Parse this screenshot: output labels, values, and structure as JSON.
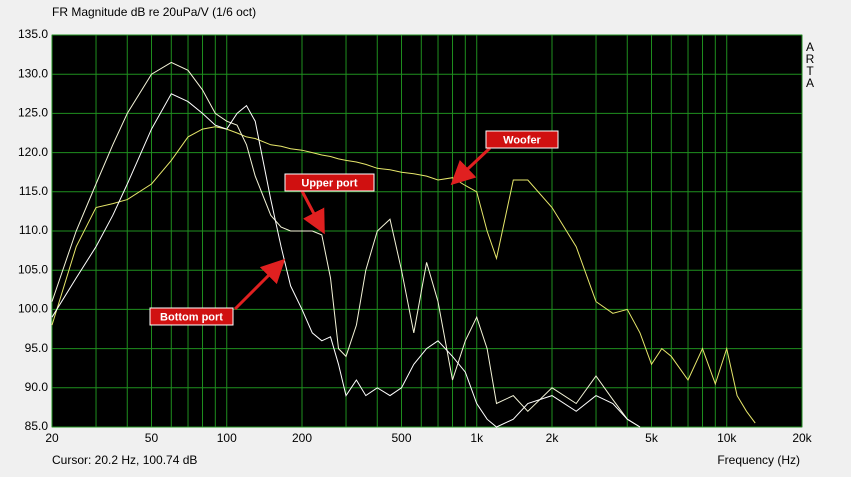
{
  "chart_data": {
    "type": "line",
    "title": "FR Magnitude dB re 20uPa/V (1/6 oct)",
    "side_label": "ARTA",
    "cursor_text": "Cursor: 20.2 Hz, 100.74 dB",
    "x_label": "Frequency (Hz)",
    "x_scale": "log",
    "grid": true,
    "grid_color": "#1f8f1f",
    "xlim": [
      20,
      20000
    ],
    "xticks": [
      20,
      50,
      100,
      200,
      500,
      {
        "value": 1000,
        "label": "1k"
      },
      {
        "value": 2000,
        "label": "2k"
      },
      {
        "value": 5000,
        "label": "5k"
      },
      {
        "value": 10000,
        "label": "10k"
      },
      {
        "value": 20000,
        "label": "20k"
      }
    ],
    "xminor_ticks": [
      30,
      40,
      60,
      70,
      80,
      90,
      300,
      400,
      600,
      700,
      800,
      900,
      3000,
      4000,
      6000,
      7000,
      8000,
      9000
    ],
    "ylim": [
      85,
      135
    ],
    "yticks": [
      {
        "value": 85,
        "label": "85.0"
      },
      {
        "value": 90,
        "label": "90.0"
      },
      {
        "value": 95,
        "label": "95.0"
      },
      {
        "value": 100,
        "label": "100.0"
      },
      {
        "value": 105,
        "label": "105.0"
      },
      {
        "value": 110,
        "label": "110.0"
      },
      {
        "value": 115,
        "label": "115.0"
      },
      {
        "value": 120,
        "label": "120.0"
      },
      {
        "value": 125,
        "label": "125.0"
      },
      {
        "value": 130,
        "label": "130.0"
      },
      {
        "value": 135,
        "label": "135.0"
      }
    ],
    "x": [
      20,
      25,
      30,
      35,
      40,
      50,
      60,
      70,
      80,
      90,
      100,
      110,
      120,
      130,
      150,
      165,
      180,
      200,
      220,
      240,
      260,
      280,
      300,
      330,
      360,
      400,
      450,
      500,
      560,
      630,
      700,
      800,
      900,
      1000,
      1100,
      1200,
      1400,
      1600,
      2000,
      2500,
      3000,
      3500,
      4000,
      4500,
      5000,
      5500,
      6000,
      7000,
      8000,
      9000,
      10000,
      11000,
      12000,
      13000
    ],
    "series": [
      {
        "name": "Woofer",
        "color": "#e6e66a",
        "values": [
          98,
          108,
          113,
          113.5,
          114,
          116,
          119,
          122,
          123,
          123.3,
          123,
          122.5,
          122,
          121.8,
          121,
          120.8,
          120.5,
          120.3,
          120,
          119.7,
          119.5,
          119.2,
          119,
          118.8,
          118.5,
          118,
          117.8,
          117.5,
          117.3,
          117,
          116.5,
          116.8,
          115.8,
          115,
          110,
          106.5,
          116.5,
          116.5,
          113,
          108,
          101,
          99.5,
          100,
          97,
          93,
          95,
          94,
          91,
          95,
          90.5,
          95,
          89,
          87,
          85.5
        ]
      },
      {
        "name": "Upper port",
        "color": "#f4f4d8",
        "values": [
          101,
          110,
          116,
          121,
          125,
          130,
          131.5,
          130.5,
          128,
          125,
          124,
          123.5,
          121,
          117,
          112,
          110.5,
          110,
          110,
          110,
          109.5,
          104,
          95,
          94,
          98,
          105,
          110,
          111.5,
          105,
          97,
          106,
          101,
          91,
          96,
          99,
          95,
          88,
          89,
          87,
          90,
          88,
          91.5,
          88.5,
          86,
          85,
          null,
          null,
          null,
          null,
          null,
          null,
          null,
          null,
          null,
          null
        ]
      },
      {
        "name": "Bottom port",
        "color": "#ffffff",
        "values": [
          99,
          104,
          108,
          112,
          116,
          123,
          127.5,
          126.5,
          125,
          123.5,
          123,
          125,
          126,
          124,
          114,
          108,
          103,
          100,
          97,
          96,
          96.5,
          93,
          89,
          91,
          89,
          90,
          89,
          90,
          93,
          95,
          96,
          94,
          92,
          88,
          86,
          85,
          86,
          88,
          89,
          87,
          89,
          88,
          86,
          85,
          null,
          null,
          null,
          null,
          null,
          null,
          null,
          null,
          null,
          null
        ]
      }
    ]
  }
}
